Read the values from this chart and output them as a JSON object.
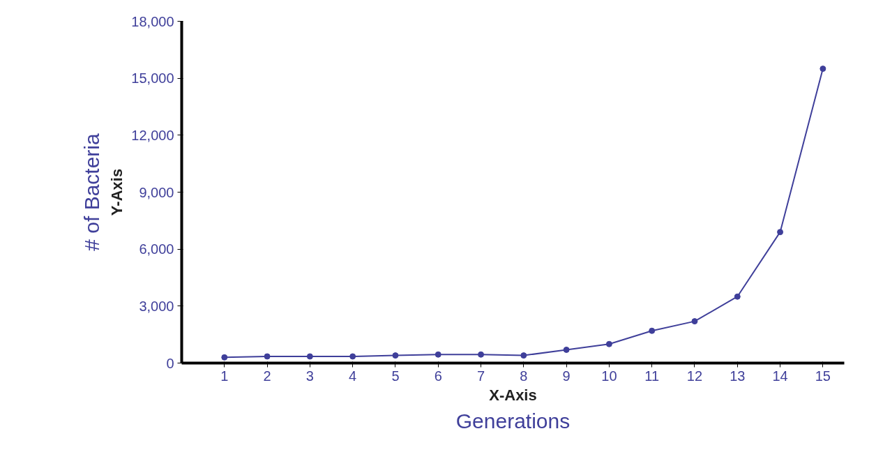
{
  "chart_data": {
    "type": "line",
    "xlabel": "Generations",
    "ylabel": "# of Bacteria",
    "annotations": [
      "X-Axis",
      "Y-Axis"
    ],
    "x": [
      1,
      2,
      3,
      4,
      5,
      6,
      7,
      8,
      9,
      10,
      11,
      12,
      13,
      14,
      15
    ],
    "series": [
      {
        "color": "#3f3f9a",
        "values": [
          300,
          350,
          350,
          350,
          400,
          450,
          450,
          400,
          700,
          1000,
          1700,
          2200,
          3500,
          6900,
          15500
        ]
      }
    ],
    "xlim": [
      0,
      15.5
    ],
    "xticks": [
      1,
      2,
      3,
      4,
      5,
      6,
      7,
      8,
      9,
      10,
      11,
      12,
      13,
      14,
      15
    ],
    "ylim": [
      0,
      18000
    ],
    "yticks": [
      0,
      {
        "value": 3000,
        "label": "3,000"
      },
      {
        "value": 6000,
        "label": "6,000"
      },
      {
        "value": 9000,
        "label": "9,000"
      },
      {
        "value": 12000,
        "label": "12,000"
      },
      {
        "value": 15000,
        "label": "15,000"
      },
      {
        "value": 18000,
        "label": "18,000"
      }
    ],
    "grid": false,
    "marker": "circle",
    "line_style": "solid"
  }
}
